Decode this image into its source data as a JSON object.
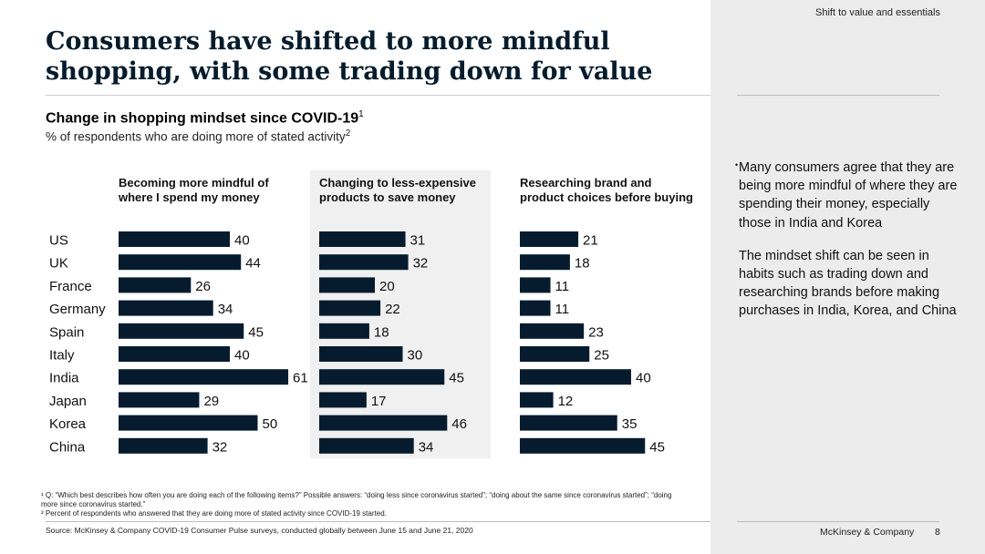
{
  "header": {
    "section_label": "Shift to value and essentials",
    "title_line1": "Consumers have shifted to more mindful",
    "title_line2": "shopping, with some trading down for value"
  },
  "subtitle": {
    "text": "Change in shopping mindset since COVID-19",
    "sup": "1"
  },
  "unit": {
    "text": "% of respondents who are doing more of stated activity",
    "sup": "2"
  },
  "colors": {
    "bar": "#061c2e",
    "panel_highlight": "#f0f0f0",
    "sidebar_bg": "#ececec"
  },
  "chart_data": {
    "type": "bar",
    "orientation": "horizontal",
    "categories": [
      "US",
      "UK",
      "France",
      "Germany",
      "Spain",
      "Italy",
      "India",
      "Japan",
      "Korea",
      "China"
    ],
    "series": [
      {
        "name": "Becoming more mindful of where I spend my money",
        "title_line1": "Becoming more mindful of",
        "title_line2": "where I spend my money",
        "values": [
          40,
          44,
          26,
          34,
          45,
          40,
          61,
          29,
          50,
          32
        ]
      },
      {
        "name": "Changing to less-expensive products to save money",
        "title_line1": "Changing to less-expensive",
        "title_line2": "products to save money",
        "values": [
          31,
          32,
          20,
          22,
          18,
          30,
          45,
          17,
          46,
          34
        ]
      },
      {
        "name": "Researching brand and product choices before buying",
        "title_line1": "Researching brand and",
        "title_line2": "product choices before buying",
        "values": [
          21,
          18,
          11,
          11,
          23,
          25,
          40,
          12,
          35,
          45
        ]
      }
    ],
    "value_max": 61,
    "data_labels": true
  },
  "notes": [
    {
      "mark": "•",
      "text": "Many consumers agree that they are being more mindful of where they are spending their money, especially those in India and Korea"
    },
    {
      "mark": "",
      "text": "The mindset shift can be seen in habits such as trading down and researching brands before making purchases in India, Korea, and China"
    }
  ],
  "footnotes": {
    "f1": "¹ Q: “Which best describes how often you are doing each of the following items?” Possible answers: “doing less since coronavirus started”; “doing about the same since coronavirus started”; “doing more since coronavirus started.”",
    "f2": "² Percent of respondents who answered that they are doing more of stated activity since COVID-19 started.",
    "source": "Source: McKinsey & Company COVID-19 Consumer Pulse surveys, conducted globally between June 15 and June 21, 2020"
  },
  "footer": {
    "brand": "McKinsey & Company",
    "page_number": "8"
  }
}
